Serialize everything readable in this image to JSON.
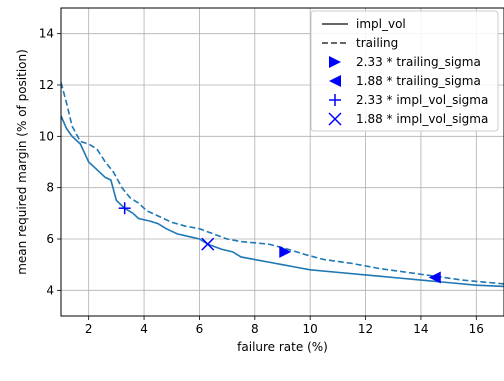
{
  "chart_data": {
    "type": "line",
    "title": "",
    "xlabel": "failure rate (%)",
    "ylabel": "mean required margin (% of position)",
    "xlim": [
      1,
      17
    ],
    "ylim": [
      3,
      15
    ],
    "grid": true,
    "legend_position": "top-right",
    "x_ticks": [
      2,
      4,
      6,
      8,
      10,
      12,
      14,
      16
    ],
    "y_ticks": [
      4,
      6,
      8,
      10,
      12,
      14
    ],
    "line_color": "#1f77b4",
    "marker_color": "#0000ff",
    "series": [
      {
        "name": "impl_vol",
        "style": "solid",
        "points": [
          [
            1.0,
            10.8
          ],
          [
            1.2,
            10.3
          ],
          [
            1.4,
            10.0
          ],
          [
            1.7,
            9.7
          ],
          [
            2.0,
            9.0
          ],
          [
            2.3,
            8.7
          ],
          [
            2.6,
            8.4
          ],
          [
            2.8,
            8.3
          ],
          [
            3.0,
            7.5
          ],
          [
            3.3,
            7.2
          ],
          [
            3.6,
            7.0
          ],
          [
            3.8,
            6.8
          ],
          [
            4.2,
            6.7
          ],
          [
            4.5,
            6.6
          ],
          [
            4.8,
            6.4
          ],
          [
            5.2,
            6.2
          ],
          [
            5.6,
            6.1
          ],
          [
            6.0,
            6.0
          ],
          [
            6.3,
            5.8
          ],
          [
            6.8,
            5.6
          ],
          [
            7.2,
            5.5
          ],
          [
            7.5,
            5.3
          ],
          [
            8.0,
            5.2
          ],
          [
            8.5,
            5.1
          ],
          [
            9.0,
            5.0
          ],
          [
            9.5,
            4.9
          ],
          [
            10.0,
            4.8
          ],
          [
            11.0,
            4.7
          ],
          [
            12.0,
            4.6
          ],
          [
            13.0,
            4.5
          ],
          [
            14.0,
            4.4
          ],
          [
            15.0,
            4.3
          ],
          [
            16.0,
            4.2
          ],
          [
            17.0,
            4.15
          ]
        ]
      },
      {
        "name": "trailing",
        "style": "dashed",
        "points": [
          [
            1.0,
            12.1
          ],
          [
            1.2,
            11.3
          ],
          [
            1.4,
            10.4
          ],
          [
            1.7,
            9.8
          ],
          [
            2.0,
            9.7
          ],
          [
            2.3,
            9.5
          ],
          [
            2.6,
            9.0
          ],
          [
            2.9,
            8.6
          ],
          [
            3.2,
            8.0
          ],
          [
            3.5,
            7.6
          ],
          [
            3.8,
            7.4
          ],
          [
            4.1,
            7.1
          ],
          [
            4.5,
            6.9
          ],
          [
            5.0,
            6.65
          ],
          [
            5.5,
            6.5
          ],
          [
            6.0,
            6.4
          ],
          [
            6.5,
            6.2
          ],
          [
            7.0,
            6.0
          ],
          [
            7.5,
            5.9
          ],
          [
            8.0,
            5.85
          ],
          [
            8.5,
            5.8
          ],
          [
            9.2,
            5.6
          ],
          [
            9.8,
            5.4
          ],
          [
            10.5,
            5.2
          ],
          [
            11.5,
            5.05
          ],
          [
            12.5,
            4.85
          ],
          [
            13.5,
            4.7
          ],
          [
            14.5,
            4.55
          ],
          [
            15.5,
            4.4
          ],
          [
            16.5,
            4.3
          ],
          [
            17.0,
            4.25
          ]
        ]
      }
    ],
    "markers": [
      {
        "name": "2.33 * trailing_sigma",
        "marker": "triangle-right",
        "x": 9.1,
        "y": 5.5
      },
      {
        "name": "1.88 * trailing_sigma",
        "marker": "triangle-left",
        "x": 14.5,
        "y": 4.5
      },
      {
        "name": "2.33 * impl_vol_sigma",
        "marker": "plus",
        "x": 3.3,
        "y": 7.2
      },
      {
        "name": "1.88 * impl_vol_sigma",
        "marker": "x",
        "x": 6.3,
        "y": 5.8
      }
    ]
  }
}
